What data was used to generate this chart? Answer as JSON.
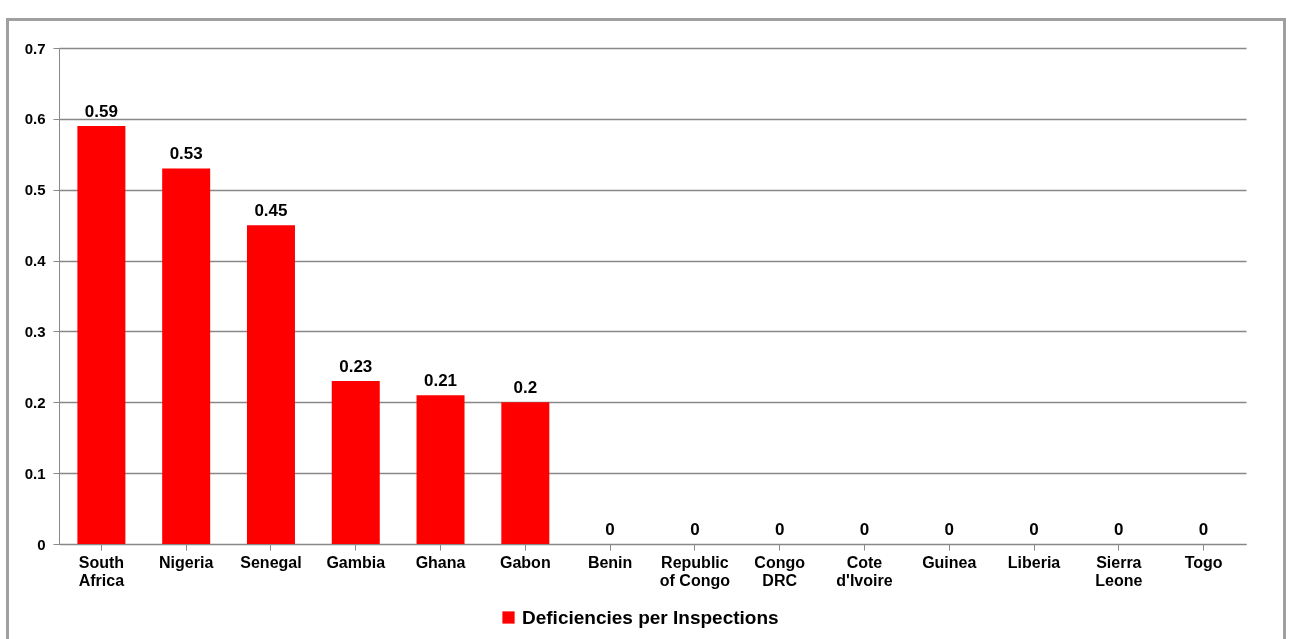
{
  "chart_data": {
    "type": "bar",
    "categories": [
      "South Africa",
      "Nigeria",
      "Senegal",
      "Gambia",
      "Ghana",
      "Gabon",
      "Benin",
      "Republic of Congo",
      "Congo DRC",
      "Cote d'Ivoire",
      "Guinea",
      "Liberia",
      "Sierra Leone",
      "Togo"
    ],
    "series": [
      {
        "name": "Deficiencies per Inspections",
        "color": "#ff0000",
        "values": [
          0.59,
          0.53,
          0.45,
          0.23,
          0.21,
          0.2,
          0,
          0,
          0,
          0,
          0,
          0,
          0,
          0
        ]
      }
    ],
    "ylim": [
      0,
      0.7
    ],
    "yticks": [
      0,
      0.1,
      0.2,
      0.3,
      0.4,
      0.5,
      0.6,
      0.7
    ],
    "grid": "y",
    "legend": "bottom",
    "data_labels": true
  }
}
